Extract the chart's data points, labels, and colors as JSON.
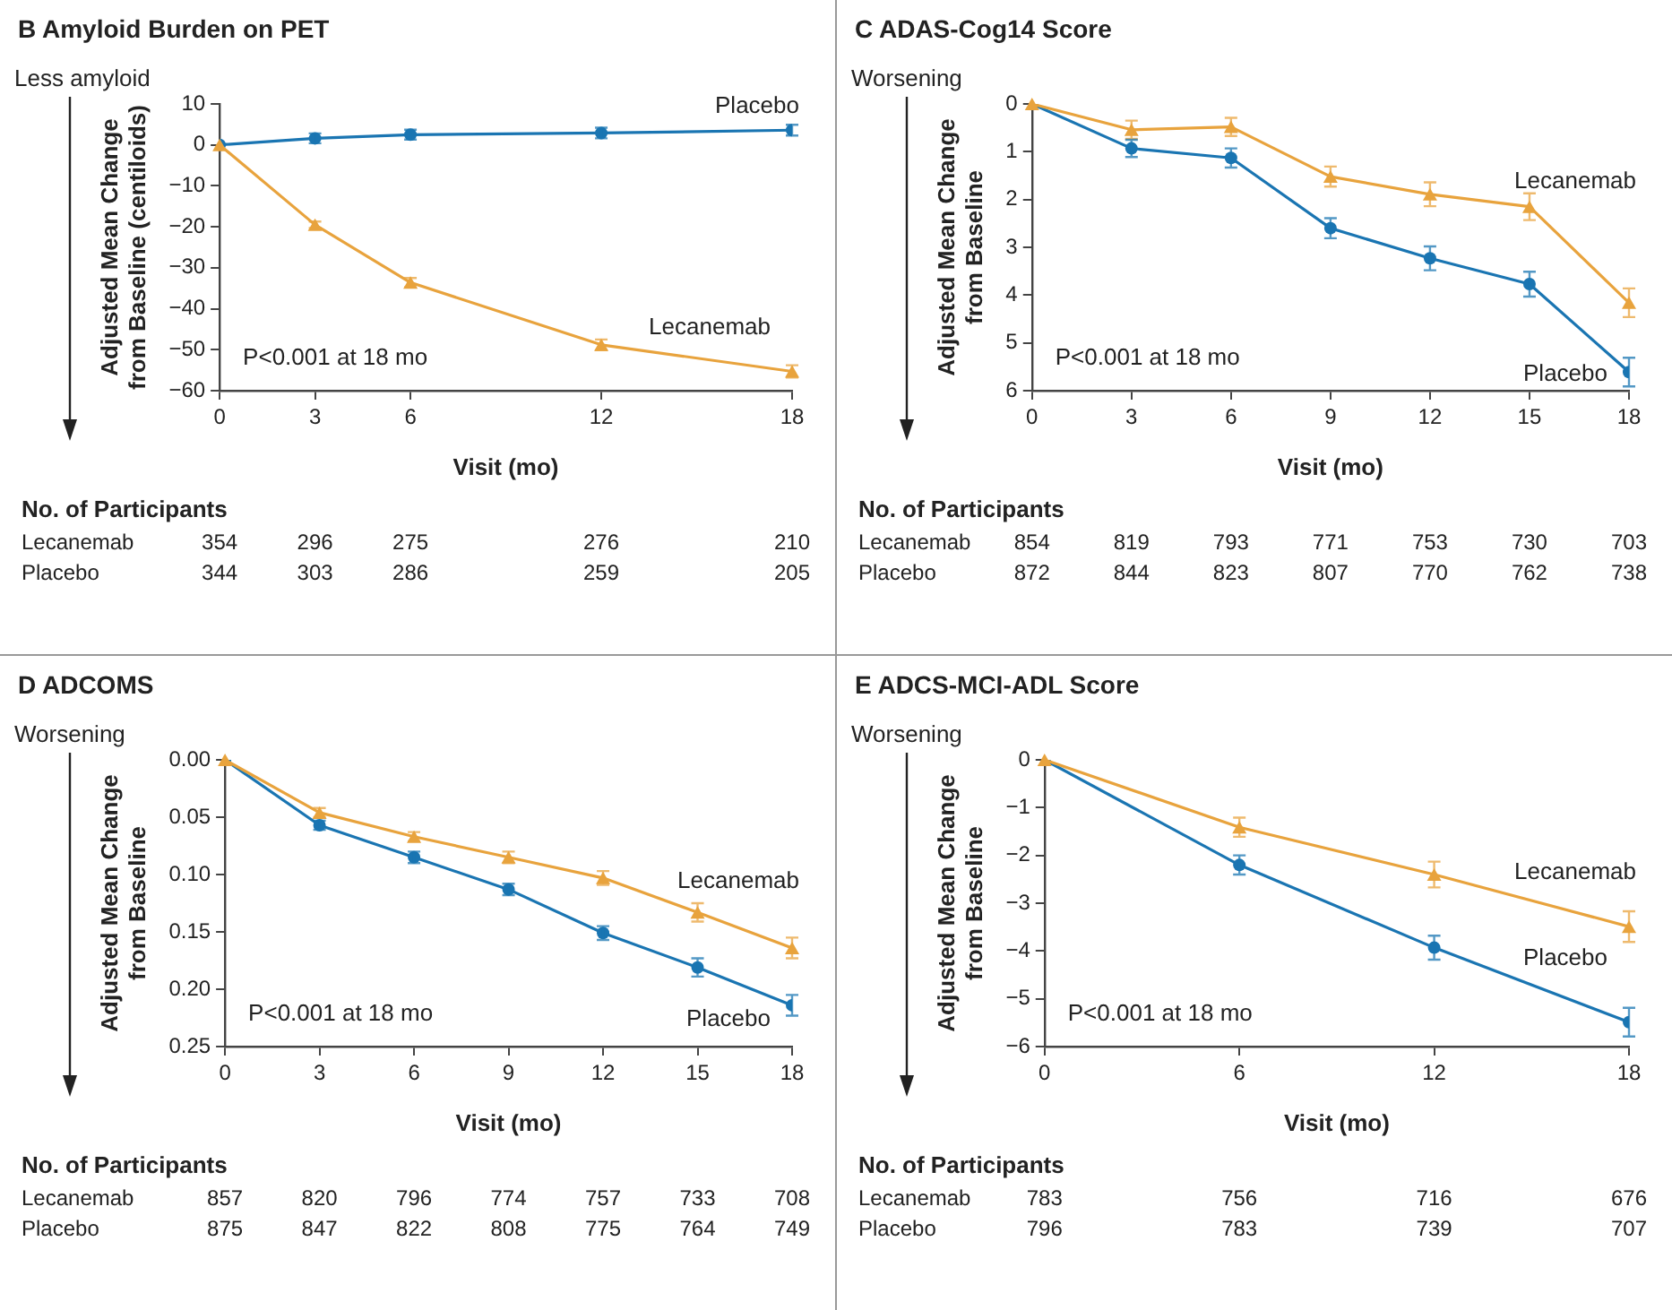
{
  "chart_data": [
    {
      "type": "line",
      "title": "B Amyloid Burden on PET",
      "xlabel": "Visit (mo)",
      "ylabel": "Adjusted Mean Change from Baseline (centiloids)",
      "x": [
        0,
        3,
        6,
        12,
        18
      ],
      "xlim": [
        0,
        18
      ],
      "xticks": [
        0,
        3,
        6,
        12,
        18
      ],
      "ylim": [
        -60,
        10
      ],
      "yticks": [
        10,
        0,
        {
          "value": -10,
          "label": "−10"
        },
        {
          "value": -20,
          "label": "−20"
        },
        {
          "value": -30,
          "label": "−30"
        },
        {
          "value": -40,
          "label": "−40"
        },
        {
          "value": -50,
          "label": "−50"
        },
        {
          "value": -60,
          "label": "−60"
        }
      ],
      "grid": false,
      "legend": false,
      "series": [
        {
          "name": "Lecanemab",
          "color": "#e8a33d",
          "marker": "triangle",
          "values": [
            0,
            -19.5,
            -33.6,
            -48.8,
            -55.3
          ],
          "errors": [
            null,
            0.8,
            1.1,
            1.3,
            1.5
          ]
        },
        {
          "name": "Placebo",
          "color": "#1a75b2",
          "marker": "circle",
          "values": [
            0,
            1.6,
            2.5,
            2.9,
            3.6
          ],
          "errors": [
            null,
            1.2,
            1.2,
            1.3,
            1.3
          ]
        }
      ],
      "annotations": [
        "Less amyloid",
        "P<0.001 at 18 mo",
        "No. of Participants",
        "354",
        "296",
        "275",
        "276",
        "210",
        "344",
        "303",
        "286",
        "259",
        "205"
      ]
    },
    {
      "type": "line",
      "title": "C ADAS-Cog14 Score",
      "xlabel": "Visit (mo)",
      "ylabel": "Adjusted Mean Change from Baseline",
      "x": [
        0,
        3,
        6,
        9,
        12,
        15,
        18
      ],
      "xlim": [
        0,
        18
      ],
      "xticks": [
        0,
        3,
        6,
        9,
        12,
        15,
        18
      ],
      "ylim": [
        6,
        0
      ],
      "yticks": [
        0,
        1,
        2,
        3,
        4,
        5,
        6
      ],
      "grid": false,
      "legend": false,
      "series": [
        {
          "name": "Lecanemab",
          "color": "#e8a33d",
          "marker": "triangle",
          "values": [
            0,
            0.54,
            0.48,
            1.52,
            1.89,
            2.15,
            4.16
          ],
          "errors": [
            null,
            0.19,
            0.19,
            0.21,
            0.25,
            0.28,
            0.3
          ]
        },
        {
          "name": "Placebo",
          "color": "#1a75b2",
          "marker": "circle",
          "values": [
            0,
            0.93,
            1.13,
            2.6,
            3.23,
            3.77,
            5.61
          ],
          "errors": [
            null,
            0.18,
            0.2,
            0.21,
            0.25,
            0.26,
            0.3
          ]
        }
      ],
      "annotations": [
        "Worsening",
        "P<0.001 at 18 mo",
        "No. of Participants",
        "854",
        "819",
        "793",
        "771",
        "753",
        "730",
        "703",
        "872",
        "844",
        "823",
        "807",
        "770",
        "762",
        "738"
      ]
    },
    {
      "type": "line",
      "title": "D ADCOMS",
      "xlabel": "Visit (mo)",
      "ylabel": "Adjusted Mean Change from Baseline",
      "x": [
        0,
        3,
        6,
        9,
        12,
        15,
        18
      ],
      "xlim": [
        0,
        18
      ],
      "xticks": [
        0,
        3,
        6,
        9,
        12,
        15,
        18
      ],
      "ylim": [
        0.25,
        0
      ],
      "yticks": [
        {
          "value": 0,
          "label": "0.00"
        },
        {
          "value": 0.05,
          "label": "0.05"
        },
        {
          "value": 0.1,
          "label": "0.10"
        },
        {
          "value": 0.15,
          "label": "0.15"
        },
        {
          "value": 0.2,
          "label": "0.20"
        },
        {
          "value": 0.25,
          "label": "0.25"
        }
      ],
      "grid": false,
      "legend": false,
      "series": [
        {
          "name": "Lecanemab",
          "color": "#e8a33d",
          "marker": "triangle",
          "values": [
            0,
            0.046,
            0.067,
            0.085,
            0.103,
            0.133,
            0.164
          ],
          "errors": [
            null,
            0.004,
            0.004,
            0.005,
            0.006,
            0.008,
            0.009
          ]
        },
        {
          "name": "Placebo",
          "color": "#1a75b2",
          "marker": "circle",
          "values": [
            0,
            0.057,
            0.085,
            0.113,
            0.151,
            0.181,
            0.214
          ],
          "errors": [
            null,
            0.004,
            0.005,
            0.005,
            0.006,
            0.008,
            0.009
          ]
        }
      ],
      "annotations": [
        "Worsening",
        "P<0.001 at 18 mo",
        "No. of Participants",
        "857",
        "820",
        "796",
        "774",
        "757",
        "733",
        "708",
        "875",
        "847",
        "822",
        "808",
        "775",
        "764",
        "749"
      ]
    },
    {
      "type": "line",
      "title": "E ADCS-MCI-ADL Score",
      "xlabel": "Visit (mo)",
      "ylabel": "Adjusted Mean Change from Baseline",
      "x": [
        0,
        6,
        12,
        18
      ],
      "xlim": [
        0,
        18
      ],
      "xticks": [
        0,
        6,
        12,
        18
      ],
      "ylim": [
        -6,
        0
      ],
      "yticks": [
        0,
        {
          "value": -1,
          "label": "−1"
        },
        {
          "value": -2,
          "label": "−2"
        },
        {
          "value": -3,
          "label": "−3"
        },
        {
          "value": -4,
          "label": "−4"
        },
        {
          "value": -5,
          "label": "−5"
        },
        {
          "value": -6,
          "label": "−6"
        }
      ],
      "grid": false,
      "legend": false,
      "series": [
        {
          "name": "Lecanemab",
          "color": "#e8a33d",
          "marker": "triangle",
          "values": [
            0,
            -1.41,
            -2.4,
            -3.49
          ],
          "errors": [
            null,
            0.2,
            0.27,
            0.32
          ]
        },
        {
          "name": "Placebo",
          "color": "#1a75b2",
          "marker": "circle",
          "values": [
            0,
            -2.2,
            -3.93,
            -5.49
          ],
          "errors": [
            null,
            0.2,
            0.25,
            0.3
          ]
        }
      ],
      "annotations": [
        "Worsening",
        "P<0.001 at 18 mo",
        "No. of Participants",
        "783",
        "756",
        "716",
        "676",
        "796",
        "783",
        "739",
        "707"
      ]
    }
  ]
}
